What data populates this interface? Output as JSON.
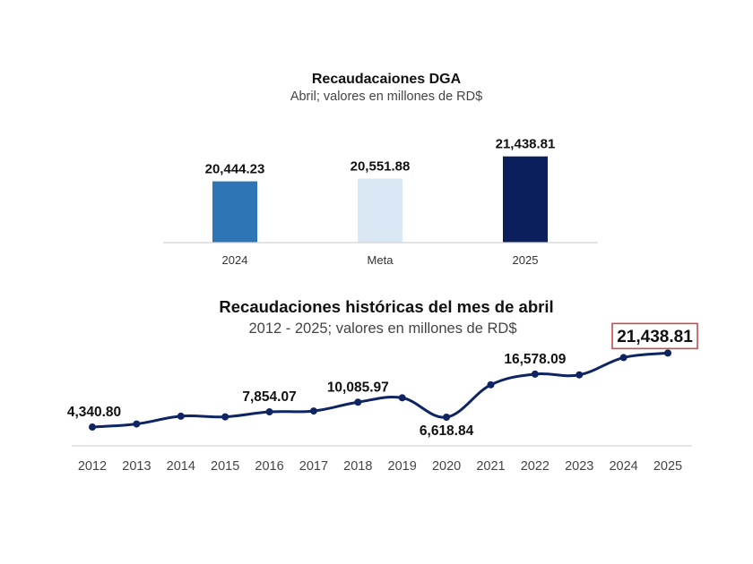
{
  "chart_data": [
    {
      "type": "bar",
      "title": "Recaudacaiones DGA",
      "subtitle": "Abril; valores en millones de RD$",
      "categories": [
        "2024",
        "Meta",
        "2025"
      ],
      "values": [
        20444.23,
        20551.88,
        21438.81
      ],
      "value_labels": [
        "20,444.23",
        "20,551.88",
        "21,438.81"
      ],
      "colors": [
        "#2e75b6",
        "#dae8f6",
        "#0b1f5c"
      ],
      "ylim": [
        18000,
        22000
      ],
      "grid": false
    },
    {
      "type": "line",
      "title": "Recaudaciones históricas del mes de abril",
      "subtitle": "2012 - 2025; valores en millones de RD$",
      "x": [
        "2012",
        "2013",
        "2014",
        "2015",
        "2016",
        "2017",
        "2018",
        "2019",
        "2020",
        "2021",
        "2022",
        "2023",
        "2024",
        "2025"
      ],
      "values": [
        4340.8,
        5050,
        6850,
        6700,
        7854.07,
        8050,
        10085.97,
        11100,
        6618.84,
        14100,
        16578.09,
        16400,
        20400,
        21438.81
      ],
      "labeled_points": [
        {
          "index": 0,
          "label": "4,340.80",
          "position": "above"
        },
        {
          "index": 4,
          "label": "7,854.07",
          "position": "above"
        },
        {
          "index": 6,
          "label": "10,085.97",
          "position": "above"
        },
        {
          "index": 8,
          "label": "6,618.84",
          "position": "below"
        },
        {
          "index": 10,
          "label": "16,578.09",
          "position": "above"
        },
        {
          "index": 13,
          "label": "21,438.81",
          "position": "above",
          "highlight": true
        }
      ],
      "line_color": "#0e2463",
      "highlight_color": "#c0504d",
      "ylim": [
        0,
        24000
      ],
      "grid": false
    }
  ]
}
